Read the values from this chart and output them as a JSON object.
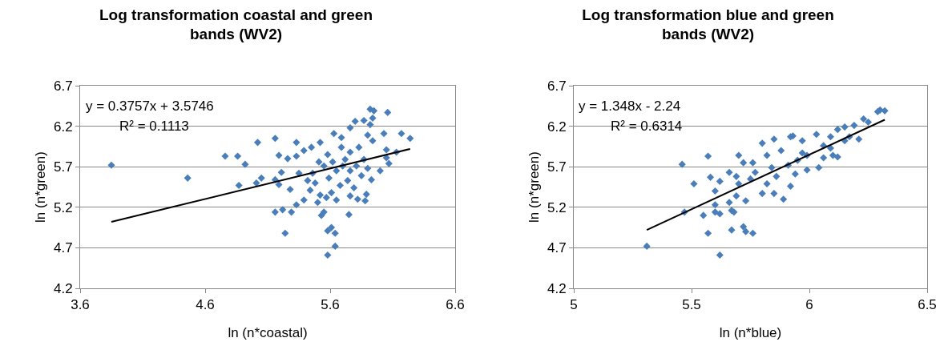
{
  "chart_data": [
    {
      "type": "scatter",
      "title": "Log transformation coastal and green bands (WV2)",
      "xlabel": "ln (n*coastal)",
      "ylabel": "ln (n*green)",
      "xlim": [
        3.6,
        6.6
      ],
      "xticks": [
        3.6,
        4.6,
        5.6,
        6.6
      ],
      "ylim": [
        4.2,
        6.7
      ],
      "yticks": [
        4.2,
        4.7,
        5.2,
        5.7,
        6.2,
        6.7
      ],
      "grid": "y",
      "marker": "diamond",
      "annotations": [
        "y = 0.3757x + 3.5746",
        "R² = 0.1113"
      ],
      "series": [
        {
          "color": "#4a7ebb",
          "x": [
            3.85,
            4.46,
            4.76,
            4.86,
            4.92,
            4.87,
            5.01,
            5.05,
            5.02,
            5.16,
            5.19,
            5.33,
            5.26,
            5.33,
            5.21,
            5.16,
            5.19,
            5.28,
            5.33,
            5.22,
            5.16,
            5.29,
            5.24,
            5.39,
            5.35,
            5.39,
            5.45,
            5.52,
            5.5,
            5.53,
            5.55,
            5.58,
            5.61,
            5.64,
            5.64,
            5.58,
            5.75,
            5.76,
            5.82,
            5.88,
            5.89,
            5.93,
            6.0,
            6.07,
            6.05,
            6.13,
            6.05,
            6.03,
            6.17,
            6.24,
            6.06,
            5.92,
            5.95,
            5.94,
            5.87,
            5.8,
            5.92,
            5.76,
            5.63,
            5.69,
            5.9,
            5.94,
            5.65,
            5.59,
            5.72,
            5.76,
            5.81,
            5.55,
            5.48,
            5.44,
            5.68,
            5.74,
            5.61,
            5.57,
            5.85,
            5.83,
            5.69,
            5.58,
            5.51,
            5.46,
            5.42,
            5.87,
            5.9,
            5.79,
            5.65,
            5.52,
            5.7,
            5.62,
            5.76
          ],
          "values": [
            5.72,
            5.56,
            5.83,
            5.83,
            5.73,
            5.47,
            5.5,
            5.56,
            6.0,
            6.05,
            5.84,
            6.0,
            5.8,
            5.83,
            5.63,
            5.54,
            5.48,
            5.42,
            5.23,
            5.17,
            5.14,
            5.14,
            4.88,
            5.29,
            5.62,
            5.9,
            5.94,
            6.0,
            5.26,
            5.1,
            5.14,
            4.91,
            4.95,
            4.88,
            4.72,
            4.61,
            5.11,
            5.34,
            5.3,
            5.28,
            5.36,
            5.54,
            5.65,
            5.74,
            5.81,
            5.88,
            5.91,
            6.11,
            6.11,
            6.05,
            6.37,
            6.41,
            6.39,
            6.3,
            6.27,
            6.26,
            6.22,
            6.18,
            6.11,
            6.06,
            6.09,
            6.02,
            5.65,
            5.56,
            5.79,
            5.88,
            5.71,
            5.71,
            5.5,
            5.41,
            5.47,
            5.53,
            5.38,
            5.32,
            5.59,
            5.94,
            5.94,
            5.85,
            5.76,
            5.62,
            5.53,
            5.79,
            5.68,
            5.44,
            5.29,
            5.35,
            5.71,
            5.76,
            5.65
          ]
        },
        {
          "type": "line",
          "marker": "none",
          "color": "#000000",
          "x": [
            3.85,
            6.24
          ],
          "values": [
            5.02,
            5.92
          ]
        }
      ]
    },
    {
      "type": "scatter",
      "title": "Log transformation blue and green bands (WV2)",
      "xlabel": "ln (n*blue)",
      "ylabel": "ln (n*green)",
      "xlim": [
        5,
        6.5
      ],
      "xticks": [
        5,
        5.5,
        6,
        6.5
      ],
      "ylim": [
        4.2,
        6.7
      ],
      "yticks": [
        4.2,
        4.7,
        5.2,
        5.7,
        6.2,
        6.7
      ],
      "grid": "y",
      "marker": "diamond",
      "annotations": [
        "y = 1.348x - 2.24",
        "R² = 0.6314"
      ],
      "series": [
        {
          "color": "#4a7ebb",
          "x": [
            5.31,
            5.62,
            5.57,
            5.67,
            5.72,
            5.73,
            5.76,
            5.55,
            5.6,
            5.62,
            5.67,
            5.68,
            5.47,
            5.6,
            5.66,
            5.51,
            5.46,
            5.57,
            5.7,
            5.72,
            5.58,
            5.6,
            5.66,
            5.69,
            5.73,
            5.77,
            5.8,
            5.85,
            5.89,
            5.82,
            5.86,
            5.92,
            5.76,
            5.8,
            5.82,
            5.85,
            5.88,
            5.92,
            5.93,
            5.95,
            5.94,
            5.97,
            5.99,
            6.03,
            6.06,
            6.04,
            5.99,
            6.09,
            6.12,
            6.12,
            6.15,
            6.15,
            6.17,
            6.19,
            6.21,
            6.23,
            6.25,
            6.29,
            6.3,
            6.32,
            6.06,
            5.97,
            5.91,
            5.84,
            5.62,
            5.7,
            5.75,
            5.69,
            6.09,
            6.1
          ],
          "values": [
            4.72,
            4.61,
            4.88,
            4.92,
            4.96,
            4.9,
            4.88,
            5.1,
            5.14,
            5.12,
            5.16,
            5.14,
            5.14,
            5.23,
            5.26,
            5.49,
            5.73,
            5.83,
            5.84,
            5.75,
            5.57,
            5.4,
            5.63,
            5.34,
            5.28,
            5.63,
            5.37,
            5.37,
            5.3,
            5.49,
            5.58,
            5.46,
            5.75,
            5.99,
            5.84,
            6.04,
            5.9,
            6.07,
            6.08,
            5.78,
            5.61,
            6.02,
            5.84,
            6.1,
            5.96,
            5.69,
            5.66,
            6.07,
            6.16,
            5.82,
            6.19,
            6.02,
            6.07,
            6.21,
            6.04,
            6.29,
            6.25,
            6.38,
            6.4,
            6.39,
            5.81,
            5.87,
            5.72,
            5.69,
            5.52,
            5.49,
            5.55,
            5.58,
            5.93,
            5.84
          ]
        },
        {
          "type": "line",
          "marker": "none",
          "color": "#000000",
          "x": [
            5.31,
            6.32
          ],
          "values": [
            4.92,
            6.28
          ]
        }
      ]
    }
  ]
}
